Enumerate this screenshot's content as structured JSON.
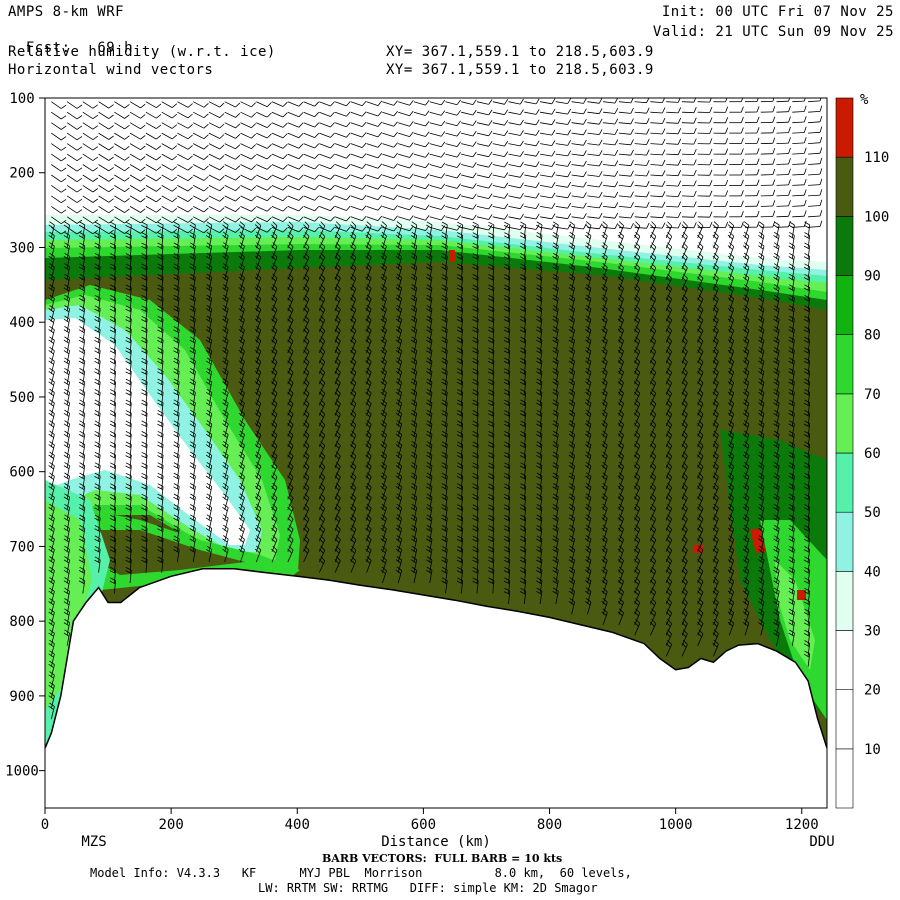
{
  "header": {
    "model_title": "AMPS 8-km WRF",
    "forecast_label": "Fcst:",
    "forecast_value": "69 h",
    "field_1": "Relative humidity (w.r.t. ice)",
    "field_2": "Horizontal wind vectors",
    "xy_1": "XY= 367.1,559.1 to 218.5,603.9",
    "xy_2": "XY= 367.1,559.1 to 218.5,603.9",
    "init": "Init: 00 UTC Fri 07 Nov 25",
    "valid": "Valid: 21 UTC Sun 09 Nov 25"
  },
  "footer": {
    "barb_note": "BARB VECTORS:  FULL BARB = 10 kts",
    "model_info": "Model Info: V4.3.3   KF      MYJ PBL  Morrison          8.0 km,  60 levels,",
    "physics": "LW: RRTM SW: RRTMG   DIFF: simple KM: 2D Smagor"
  },
  "colors": {
    "c_0_10": "#ffffff",
    "c_10_20": "#ffffff",
    "c_20_30": "#ffffff",
    "c_30_40": "#e0fff0",
    "c_40_50": "#8ff2e2",
    "c_50_60": "#55f0aa",
    "c_60_70": "#66ee55",
    "c_70_80": "#2fd82f",
    "c_80_90": "#11b311",
    "c_90_100": "#0b7a0b",
    "c_100_110": "#4a5a10",
    "c_110_plus": "#cc1a00",
    "terrain_line": "#000000"
  },
  "chart_data": {
    "type": "heatmap",
    "title": "Relative humidity (w.r.t. ice)",
    "xlabel": "Distance (km)",
    "ylabel": "",
    "xlim": [
      0,
      1240
    ],
    "ylim": [
      1050,
      100
    ],
    "x_ticks": [
      0,
      200,
      400,
      600,
      800,
      1000,
      1200
    ],
    "y_ticks": [
      100,
      200,
      300,
      400,
      500,
      600,
      700,
      800,
      900,
      1000
    ],
    "endpoint_left": "MZS",
    "endpoint_right": "DDU",
    "colorbar": {
      "unit": "%",
      "bounds": [
        10,
        20,
        30,
        40,
        50,
        60,
        70,
        80,
        90,
        100,
        110
      ],
      "labels": [
        "10",
        "20",
        "30",
        "40",
        "50",
        "60",
        "70",
        "80",
        "90",
        "100",
        "110"
      ]
    },
    "terrain_surface": {
      "x": [
        0,
        10,
        25,
        45,
        65,
        85,
        100,
        120,
        150,
        200,
        250,
        300,
        350,
        400,
        450,
        500,
        550,
        600,
        650,
        700,
        750,
        800,
        850,
        900,
        950,
        975,
        1000,
        1020,
        1040,
        1060,
        1080,
        1100,
        1130,
        1160,
        1190,
        1210,
        1225,
        1240
      ],
      "y": [
        970,
        950,
        900,
        800,
        775,
        755,
        775,
        775,
        755,
        740,
        730,
        730,
        735,
        740,
        745,
        752,
        758,
        765,
        772,
        780,
        787,
        795,
        805,
        815,
        830,
        850,
        865,
        862,
        850,
        855,
        840,
        832,
        830,
        840,
        855,
        880,
        930,
        970
      ]
    },
    "saturated_layer": {
      "top_hpa": [
        270,
        290
      ],
      "base": "surface"
    },
    "notes": "Cross-section of relative humidity w.r.t. ice with horizontal wind barbs"
  }
}
